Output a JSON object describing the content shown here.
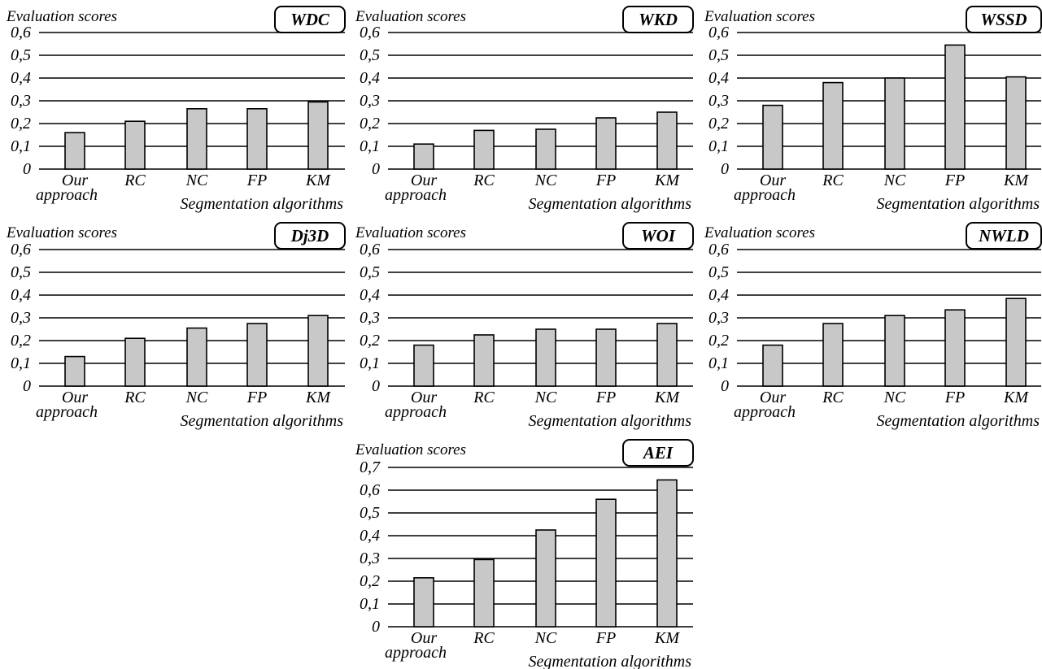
{
  "page": {
    "background": "#ffffff",
    "bar_fill": "#c8c8c8",
    "bar_stroke": "#000000",
    "gridline_color": "#000000"
  },
  "chart_data": [
    {
      "type": "bar",
      "title": "WDC",
      "ylabel": "Evaluation scores",
      "xlabel": "Segmentation algorithms",
      "categories": [
        "Our approach",
        "RC",
        "NC",
        "FP",
        "KM"
      ],
      "values": [
        0.16,
        0.21,
        0.265,
        0.265,
        0.295
      ],
      "ylim": [
        0,
        0.6
      ],
      "yticks": [
        "0",
        "0,1",
        "0,2",
        "0,3",
        "0,4",
        "0,5",
        "0,6"
      ],
      "grid": true
    },
    {
      "type": "bar",
      "title": "WKD",
      "ylabel": "Evaluation scores",
      "xlabel": "Segmentation algorithms",
      "categories": [
        "Our approach",
        "RC",
        "NC",
        "FP",
        "KM"
      ],
      "values": [
        0.11,
        0.17,
        0.175,
        0.225,
        0.25
      ],
      "ylim": [
        0,
        0.6
      ],
      "yticks": [
        "0",
        "0,1",
        "0,2",
        "0,3",
        "0,4",
        "0,5",
        "0,6"
      ],
      "grid": true
    },
    {
      "type": "bar",
      "title": "WSSD",
      "ylabel": "Evaluation scores",
      "xlabel": "Segmentation algorithms",
      "categories": [
        "Our approach",
        "RC",
        "NC",
        "FP",
        "KM"
      ],
      "values": [
        0.28,
        0.38,
        0.4,
        0.545,
        0.405
      ],
      "ylim": [
        0,
        0.6
      ],
      "yticks": [
        "0",
        "0,1",
        "0,2",
        "0,3",
        "0,4",
        "0,5",
        "0,6"
      ],
      "grid": true
    },
    {
      "type": "bar",
      "title": "Dj3D",
      "ylabel": "Evaluation scores",
      "xlabel": "Segmentation algorithms",
      "categories": [
        "Our approach",
        "RC",
        "NC",
        "FP",
        "KM"
      ],
      "values": [
        0.13,
        0.21,
        0.255,
        0.275,
        0.31
      ],
      "ylim": [
        0,
        0.6
      ],
      "yticks": [
        "0",
        "0,1",
        "0,2",
        "0,3",
        "0,4",
        "0,5",
        "0,6"
      ],
      "grid": true
    },
    {
      "type": "bar",
      "title": "WOI",
      "ylabel": "Evaluation scores",
      "xlabel": "Segmentation algorithms",
      "categories": [
        "Our approach",
        "RC",
        "NC",
        "FP",
        "KM"
      ],
      "values": [
        0.18,
        0.225,
        0.25,
        0.25,
        0.275
      ],
      "ylim": [
        0,
        0.6
      ],
      "yticks": [
        "0",
        "0,1",
        "0,2",
        "0,3",
        "0,4",
        "0,5",
        "0,6"
      ],
      "grid": true
    },
    {
      "type": "bar",
      "title": "NWLD",
      "ylabel": "Evaluation scores",
      "xlabel": "Segmentation algorithms",
      "categories": [
        "Our approach",
        "RC",
        "NC",
        "FP",
        "KM"
      ],
      "values": [
        0.18,
        0.275,
        0.31,
        0.335,
        0.385
      ],
      "ylim": [
        0,
        0.6
      ],
      "yticks": [
        "0",
        "0,1",
        "0,2",
        "0,3",
        "0,4",
        "0,5",
        "0,6"
      ],
      "grid": true
    },
    {
      "type": "bar",
      "title": "AEI",
      "ylabel": "Evaluation scores",
      "xlabel": "Segmentation algorithms",
      "categories": [
        "Our approach",
        "RC",
        "NC",
        "FP",
        "KM"
      ],
      "values": [
        0.215,
        0.295,
        0.425,
        0.56,
        0.645
      ],
      "ylim": [
        0,
        0.7
      ],
      "yticks": [
        "0",
        "0,1",
        "0,2",
        "0,3",
        "0,4",
        "0,5",
        "0,6",
        "0,7"
      ],
      "grid": true
    }
  ]
}
